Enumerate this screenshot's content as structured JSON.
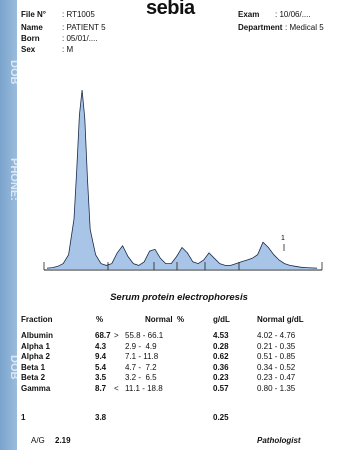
{
  "brand": "sebia",
  "side_labels": [
    "DOB",
    "PHONE:",
    "DOB"
  ],
  "patient": {
    "file_label": "File N°",
    "file_value": ": RT1005",
    "name_label": "Name",
    "name_value": ": PATIENT 5",
    "born_label": "Born",
    "born_value": ": 05/01/....",
    "sex_label": "Sex",
    "sex_value": ": M",
    "exam_label": "Exam",
    "exam_value": ": 10/06/....",
    "dept_label": "Department",
    "dept_value": ": Medical 5"
  },
  "marker_label": "1",
  "chart_data": {
    "type": "line",
    "title": "Serum protein electrophoresis",
    "x": [
      0,
      2,
      4,
      6,
      8,
      10,
      11,
      12,
      13,
      14,
      15,
      16,
      18,
      20,
      22,
      24,
      26,
      28,
      30,
      32,
      34,
      36,
      38,
      40,
      42,
      44,
      46,
      48,
      50,
      52,
      54,
      56,
      58,
      60,
      62,
      64,
      66,
      68,
      70,
      72,
      74,
      76,
      78,
      80,
      82,
      84,
      86,
      88,
      90,
      92,
      94,
      96,
      98,
      100
    ],
    "y": [
      0.5,
      0.8,
      1.5,
      3,
      8,
      28,
      55,
      86,
      100,
      84,
      50,
      22,
      8,
      3,
      2,
      3,
      9,
      13,
      7,
      3,
      2,
      4,
      10,
      11,
      6,
      3,
      3,
      7,
      12,
      9,
      4,
      3,
      5,
      9,
      6,
      3,
      2,
      2,
      3,
      4,
      5,
      6,
      8,
      15,
      12,
      8,
      5,
      3,
      2,
      1.5,
      1,
      0.8,
      0.6,
      0.5
    ],
    "grid": false
  },
  "table": {
    "headers": [
      "Fraction",
      "%",
      "Normal  %",
      "g/dL",
      "Normal g/dL"
    ],
    "rows": [
      {
        "name": "Albumin",
        "pct": "68.7",
        "flag": ">",
        "normal": "55.8 - 66.1",
        "gdl": "4.53",
        "normal_gdl": "4.02 - 4.76"
      },
      {
        "name": "Alpha 1",
        "pct": "4.3",
        "flag": "",
        "normal": "2.9 -  4.9",
        "gdl": "0.28",
        "normal_gdl": "0.21 - 0.35"
      },
      {
        "name": "Alpha 2",
        "pct": "9.4",
        "flag": "",
        "normal": "7.1 - 11.8",
        "gdl": "0.62",
        "normal_gdl": "0.51 - 0.85"
      },
      {
        "name": "Beta 1",
        "pct": "5.4",
        "flag": "",
        "normal": "4.7 -  7.2",
        "gdl": "0.36",
        "normal_gdl": "0.34 - 0.52"
      },
      {
        "name": "Beta 2",
        "pct": "3.5",
        "flag": "",
        "normal": "3.2 -  6.5",
        "gdl": "0.23",
        "normal_gdl": "0.23 - 0.47"
      },
      {
        "name": "Gamma",
        "pct": "8.7",
        "flag": "<",
        "normal": "11.1 - 18.8",
        "gdl": "0.57",
        "normal_gdl": "0.80 - 1.35"
      }
    ],
    "extra": {
      "name": "1",
      "pct": "3.8",
      "gdl": "0.25"
    }
  },
  "footer": {
    "ag_label": "A/G",
    "ag_value": "2.19",
    "pathologist": "Pathologist"
  }
}
